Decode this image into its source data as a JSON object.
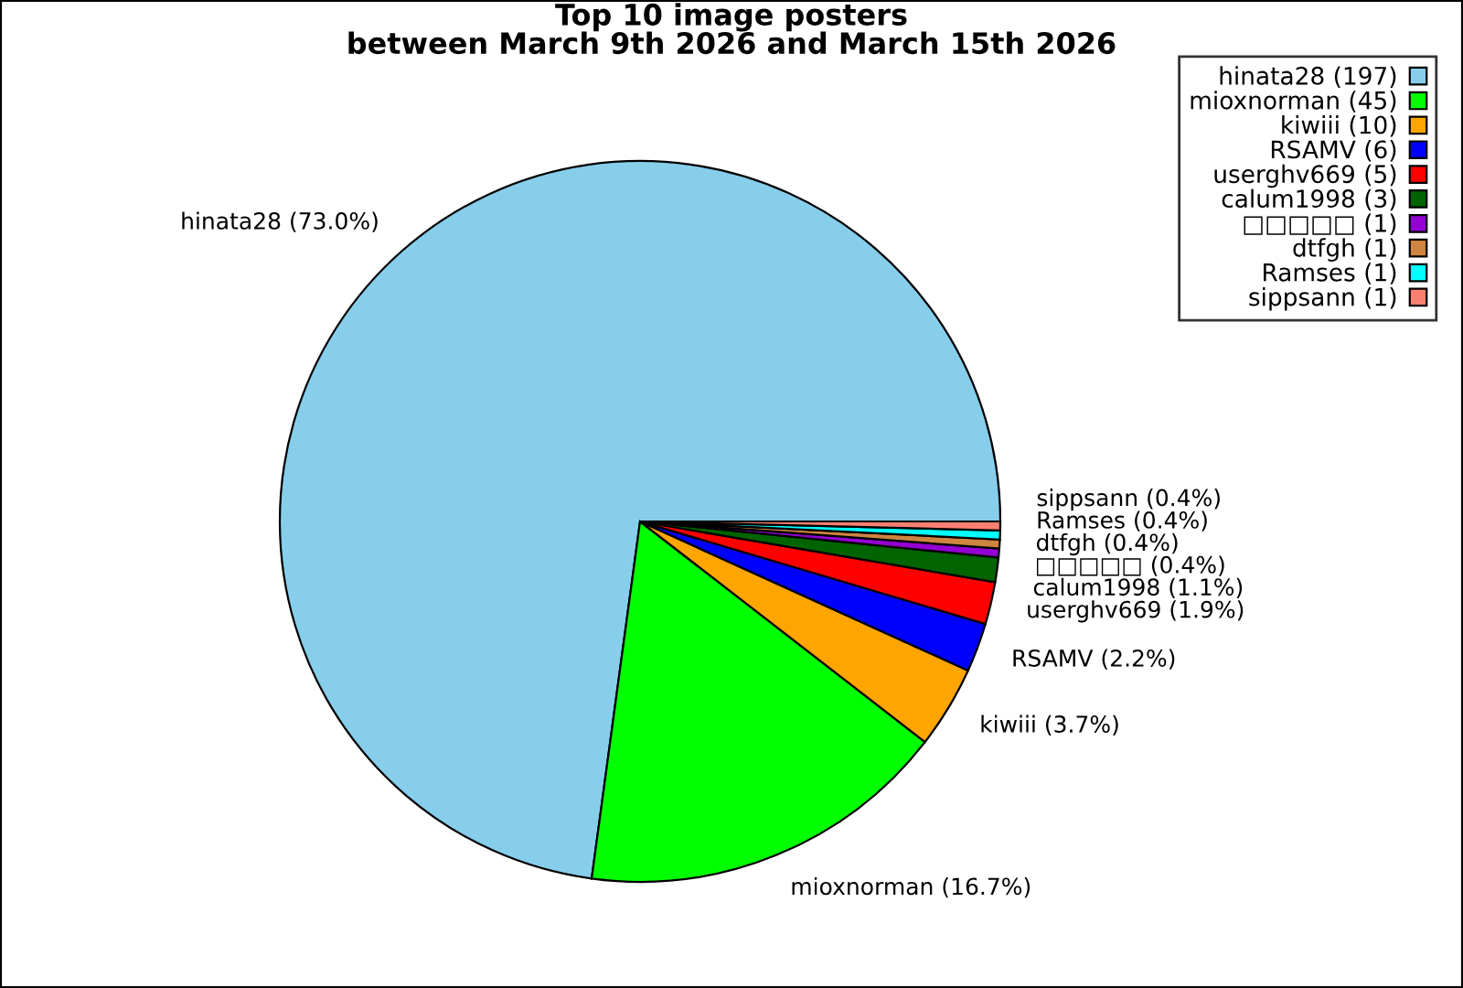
{
  "chart_data": {
    "type": "pie",
    "title": "Top 10 image posters\nbetween March 9th 2026 and March 15th 2026",
    "categories": [
      "hinata28 (197)",
      "mioxnorman (45)",
      "kiwiii (10)",
      "RSAMV (6)",
      "userghv669 (5)",
      "calum1998 (3)",
      "□□□□□ (1)",
      "dtfgh (1)",
      "Ramses (1)",
      "sippsann (1)"
    ],
    "values": [
      73.0,
      16.7,
      3.7,
      2.2,
      1.9,
      1.1,
      0.4,
      0.4,
      0.4,
      0.4
    ],
    "colors": [
      "#87ceeb",
      "#00ff00",
      "#ffa500",
      "#0000ff",
      "#ff0000",
      "#006400",
      "#9400d3",
      "#cd853f",
      "#00ffff",
      "#fa8072"
    ],
    "value_labels": [
      "hinata28 (73.0%)",
      "mioxnorman (16.7%)",
      "kiwiii (3.7%)",
      "RSAMV (2.2%)",
      "userghv669 (1.9%)",
      "calum1998 (1.1%)",
      "□□□□□ (0.4%)",
      "dtfgh (0.4%)",
      "Ramses (0.4%)",
      "sippsann (0.4%)"
    ],
    "legend": "top right"
  }
}
